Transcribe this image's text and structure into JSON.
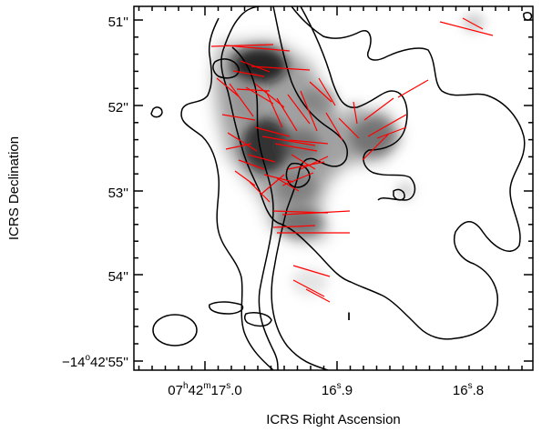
{
  "chart_data": {
    "type": "scatter",
    "title": "",
    "xlabel": "ICRS Right Ascension",
    "ylabel": "ICRS Declination",
    "x_ticks": [
      {
        "label": "07",
        "sup": "h",
        "label2": "42",
        "sup2": "m",
        "label3": "17",
        "sup3": "s",
        "label4": ".0"
      },
      {
        "label": "16",
        "sup": "s",
        "label2": ".9"
      },
      {
        "label": "16",
        "sup": "s",
        "label2": ".8"
      }
    ],
    "y_ticks": [
      {
        "label": "51''"
      },
      {
        "label": "52''"
      },
      {
        "label": "53''"
      },
      {
        "label": "54''"
      },
      {
        "label": "−14",
        "sup": "o",
        "label2": "42'55''"
      }
    ],
    "colors": {
      "vectors": "#ff0000",
      "contours": "#000000",
      "background": "#ffffff"
    },
    "annotation": "I"
  }
}
